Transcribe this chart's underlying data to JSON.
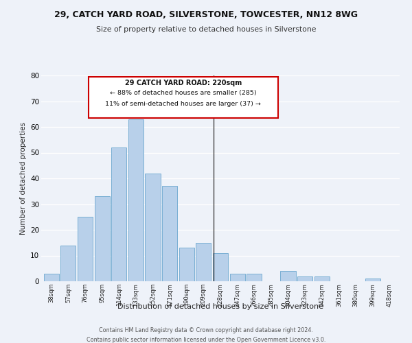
{
  "title": "29, CATCH YARD ROAD, SILVERSTONE, TOWCESTER, NN12 8WG",
  "subtitle": "Size of property relative to detached houses in Silverstone",
  "xlabel": "Distribution of detached houses by size in Silverstone",
  "ylabel": "Number of detached properties",
  "bar_labels": [
    "38sqm",
    "57sqm",
    "76sqm",
    "95sqm",
    "114sqm",
    "133sqm",
    "152sqm",
    "171sqm",
    "190sqm",
    "209sqm",
    "228sqm",
    "247sqm",
    "266sqm",
    "285sqm",
    "304sqm",
    "323sqm",
    "342sqm",
    "361sqm",
    "380sqm",
    "399sqm",
    "418sqm"
  ],
  "bar_values": [
    3,
    14,
    25,
    33,
    52,
    63,
    42,
    37,
    13,
    15,
    11,
    3,
    3,
    0,
    4,
    2,
    2,
    0,
    0,
    1,
    0
  ],
  "bar_color": "#b8d0ea",
  "bar_edge_color": "#7aafd4",
  "marker_line_color": "#444444",
  "annotation_line1": "29 CATCH YARD ROAD: 220sqm",
  "annotation_line2": "← 88% of detached houses are smaller (285)",
  "annotation_line3": "11% of semi-detached houses are larger (37) →",
  "annotation_box_color": "#ffffff",
  "annotation_box_edge_color": "#cc0000",
  "footer_line1": "Contains HM Land Registry data © Crown copyright and database right 2024.",
  "footer_line2": "Contains public sector information licensed under the Open Government Licence v3.0.",
  "background_color": "#eef2f9",
  "ylim": [
    0,
    80
  ],
  "yticks": [
    0,
    10,
    20,
    30,
    40,
    50,
    60,
    70,
    80
  ]
}
